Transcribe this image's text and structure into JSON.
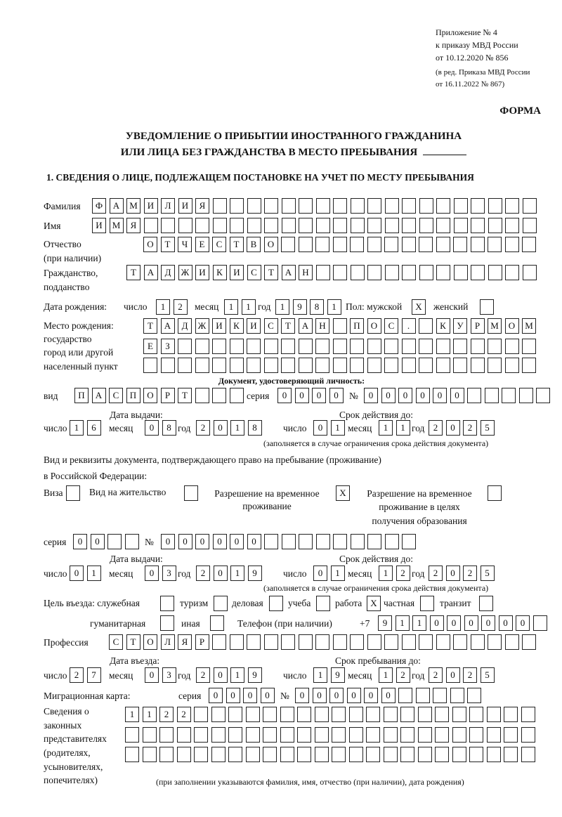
{
  "header": {
    "appendix": [
      "Приложение № 4",
      "к приказу МВД России",
      "от 10.12.2020 № 856"
    ],
    "edition": [
      "(в ред. Приказа МВД России",
      "от 16.11.2022 № 867)"
    ],
    "form_label": "ФОРМА",
    "title_line1": "УВЕДОМЛЕНИЕ О ПРИБЫТИИ ИНОСТРАННОГО ГРАЖДАНИНА",
    "title_line2": "ИЛИ ЛИЦА БЕЗ ГРАЖДАНСТВА В МЕСТО ПРЕБЫВАНИЯ",
    "section1": "1. СВЕДЕНИЯ О ЛИЦЕ, ПОДЛЕЖАЩЕМ ПОСТАНОВКЕ НА УЧЕТ ПО МЕСТУ ПРЕБЫВАНИЯ"
  },
  "labels": {
    "surname": "Фамилия",
    "name": "Имя",
    "patronymic": "Отчество",
    "patronymic_note": "(при наличии)",
    "citizenship": "Гражданство,",
    "citizenship2": "подданство",
    "dob": "Дата рождения:",
    "day": "число",
    "month": "месяц",
    "year": "год",
    "sex": "Пол: мужской",
    "female": "женский",
    "birthplace": [
      "Место рождения:",
      "государство",
      "город или другой",
      "населенный пункт"
    ],
    "id_doc": "Документ, удостоверяющий личность:",
    "kind": "вид",
    "series": "серия",
    "number": "№",
    "issue_date": "Дата выдачи:",
    "valid_until": "Срок действия до:",
    "valid_note": "(заполняется в случае ограничения срока действия документа)",
    "residence_doc1": "Вид и реквизиты документа, подтверждающего право на пребывание (проживание)",
    "residence_doc2": "в Российской Федерации:",
    "visa": "Виза",
    "residence_permit": "Вид на жительство",
    "temp_permit1": "Разрешение на временное",
    "temp_permit2": "проживание",
    "temp_edu1": "Разрешение на временное",
    "temp_edu2": "проживание в целях",
    "temp_edu3": "получения образования",
    "purpose": "Цель въезда: служебная",
    "tourism": "туризм",
    "business": "деловая",
    "study": "учеба",
    "work": "работа",
    "private": "частная",
    "transit": "транзит",
    "humanitarian": "гуманитарная",
    "other": "иная",
    "phone": "Телефон (при наличии)",
    "phone_prefix": "+7",
    "profession": "Профессия",
    "entry_date": "Дата въезда:",
    "stay_until": "Срок пребывания до:",
    "migration_card": "Миграционная карта:",
    "reps": [
      "Сведения о",
      "законных",
      "представителях",
      "(родителях,",
      "усыновителях,",
      "попечителях)"
    ],
    "reps_note": "(при заполнении указываются фамилия, имя, отчество (при наличии), дата рождения)"
  },
  "person": {
    "surname": "ФАМИЛИЯ",
    "name": "ИМЯ",
    "patronymic": "ОТЧЕСТВО",
    "citizenship": "ТАДЖИКИСТАН",
    "dob": {
      "day": "12",
      "month": "11",
      "year": "1981"
    },
    "sex": {
      "male": "X",
      "female": ""
    },
    "birthplace": [
      "ТАДЖИКИСТАН ПОС. КУРМОМБ",
      "ЕЗ",
      ""
    ]
  },
  "id_document": {
    "kind": "ПАСПОРТ",
    "series": "0000",
    "number": "000000",
    "issued": {
      "day": "16",
      "month": "08",
      "year": "2018"
    },
    "valid": {
      "day": "01",
      "month": "11",
      "year": "2025"
    }
  },
  "residence_document": {
    "type": {
      "visa": "",
      "residence_permit": "",
      "temp_permit": "X",
      "temp_edu": ""
    },
    "series": "00",
    "number": "000000",
    "issued": {
      "day": "01",
      "month": "03",
      "year": "2019"
    },
    "valid": {
      "day": "01",
      "month": "12",
      "year": "2025"
    }
  },
  "purpose": {
    "official": "",
    "tourism": "",
    "business": "",
    "study": "",
    "work": "X",
    "private": "",
    "transit": "",
    "humanitarian": "",
    "other": ""
  },
  "phone": "911000000",
  "profession": "СТОЛЯР",
  "entry": {
    "day": "27",
    "month": "03",
    "year": "2019"
  },
  "stay_until": {
    "day": "19",
    "month": "12",
    "year": "2025"
  },
  "migration_card": {
    "series": "0000",
    "number": "000000"
  },
  "representatives": [
    "1122",
    "",
    ""
  ]
}
